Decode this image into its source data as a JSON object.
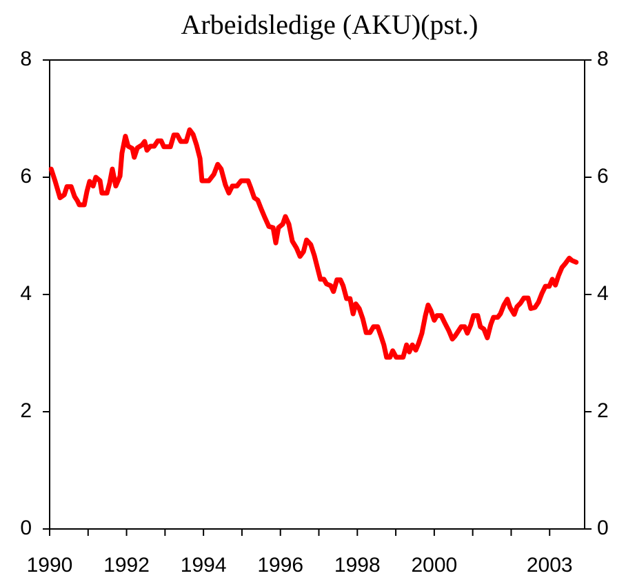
{
  "chart_data": {
    "type": "line",
    "title": "Arbeidsledige (AKU)(pst.)",
    "x": [
      1990.04,
      1990.14,
      1990.27,
      1990.38,
      1990.45,
      1990.56,
      1990.65,
      1990.72,
      1990.77,
      1990.9,
      1990.97,
      1991.04,
      1991.13,
      1991.2,
      1991.31,
      1991.36,
      1991.49,
      1991.56,
      1991.63,
      1991.72,
      1991.83,
      1991.88,
      1991.97,
      1992.04,
      1992.15,
      1992.2,
      1992.28,
      1992.4,
      1992.47,
      1992.53,
      1992.62,
      1992.72,
      1992.81,
      1992.9,
      1992.97,
      1993.14,
      1993.23,
      1993.32,
      1993.41,
      1993.55,
      1993.64,
      1993.73,
      1993.82,
      1993.91,
      1993.96,
      1994.14,
      1994.27,
      1994.37,
      1994.46,
      1994.57,
      1994.66,
      1994.75,
      1994.87,
      1994.98,
      1995.16,
      1995.23,
      1995.32,
      1995.41,
      1995.5,
      1995.59,
      1995.7,
      1995.81,
      1995.88,
      1995.95,
      1996.06,
      1996.13,
      1996.22,
      1996.31,
      1996.42,
      1996.51,
      1996.6,
      1996.68,
      1996.79,
      1996.88,
      1996.97,
      1997.04,
      1997.13,
      1997.2,
      1997.31,
      1997.38,
      1997.47,
      1997.56,
      1997.63,
      1997.72,
      1997.81,
      1997.89,
      1997.96,
      1998.05,
      1998.14,
      1998.23,
      1998.33,
      1998.42,
      1998.53,
      1998.62,
      1998.69,
      1998.76,
      1998.85,
      1998.92,
      1999.01,
      1999.19,
      1999.28,
      1999.35,
      1999.43,
      1999.52,
      1999.59,
      1999.68,
      1999.77,
      1999.84,
      1999.91,
      2000.0,
      2000.07,
      2000.18,
      2000.27,
      2000.38,
      2000.47,
      2000.54,
      2000.61,
      2000.7,
      2000.79,
      2000.86,
      2000.95,
      2001.02,
      2001.13,
      2001.2,
      2001.29,
      2001.38,
      2001.47,
      2001.54,
      2001.65,
      2001.72,
      2001.81,
      2001.9,
      2001.97,
      2002.08,
      2002.15,
      2002.24,
      2002.33,
      2002.44,
      2002.51,
      2002.62,
      2002.71,
      2002.8,
      2002.89,
      2002.99,
      2003.07,
      2003.15,
      2003.23,
      2003.32,
      2003.41,
      2003.51,
      2003.58,
      2003.69
    ],
    "series": [
      {
        "color": "#ff0000",
        "values": [
          6.14,
          5.94,
          5.65,
          5.7,
          5.84,
          5.84,
          5.67,
          5.6,
          5.53,
          5.53,
          5.76,
          5.93,
          5.85,
          6.0,
          5.94,
          5.73,
          5.73,
          5.9,
          6.14,
          5.85,
          6.02,
          6.41,
          6.7,
          6.53,
          6.49,
          6.34,
          6.5,
          6.55,
          6.61,
          6.46,
          6.53,
          6.53,
          6.62,
          6.62,
          6.52,
          6.52,
          6.72,
          6.72,
          6.61,
          6.61,
          6.81,
          6.73,
          6.55,
          6.32,
          5.94,
          5.94,
          6.05,
          6.22,
          6.14,
          5.87,
          5.73,
          5.85,
          5.85,
          5.94,
          5.94,
          5.82,
          5.65,
          5.61,
          5.46,
          5.32,
          5.16,
          5.14,
          4.88,
          5.14,
          5.2,
          5.33,
          5.2,
          4.91,
          4.79,
          4.65,
          4.73,
          4.93,
          4.85,
          4.67,
          4.44,
          4.26,
          4.26,
          4.18,
          4.15,
          4.05,
          4.25,
          4.25,
          4.15,
          3.93,
          3.93,
          3.67,
          3.84,
          3.76,
          3.59,
          3.35,
          3.35,
          3.45,
          3.45,
          3.28,
          3.14,
          2.93,
          2.93,
          3.04,
          2.93,
          2.93,
          3.14,
          3.02,
          3.14,
          3.05,
          3.16,
          3.34,
          3.64,
          3.82,
          3.73,
          3.56,
          3.64,
          3.64,
          3.52,
          3.38,
          3.24,
          3.29,
          3.36,
          3.45,
          3.45,
          3.34,
          3.48,
          3.64,
          3.64,
          3.45,
          3.41,
          3.26,
          3.49,
          3.61,
          3.61,
          3.67,
          3.82,
          3.92,
          3.78,
          3.66,
          3.79,
          3.85,
          3.94,
          3.94,
          3.76,
          3.78,
          3.87,
          4.02,
          4.14,
          4.14,
          4.26,
          4.16,
          4.32,
          4.46,
          4.53,
          4.62,
          4.58,
          4.55
        ]
      }
    ],
    "xlim": [
      1990,
      2003.91
    ],
    "xticks": [
      1990,
      1992,
      1994,
      1996,
      1998,
      2000,
      2003
    ],
    "xminorticks": [
      1991,
      1993,
      1995,
      1997,
      1999,
      2001,
      2002
    ],
    "ylim": [
      0,
      8
    ],
    "yticks": [
      0,
      2,
      4,
      6,
      8
    ],
    "y2lim": [
      0,
      8
    ],
    "y2ticks": [
      0,
      2,
      4,
      6,
      8
    ]
  }
}
